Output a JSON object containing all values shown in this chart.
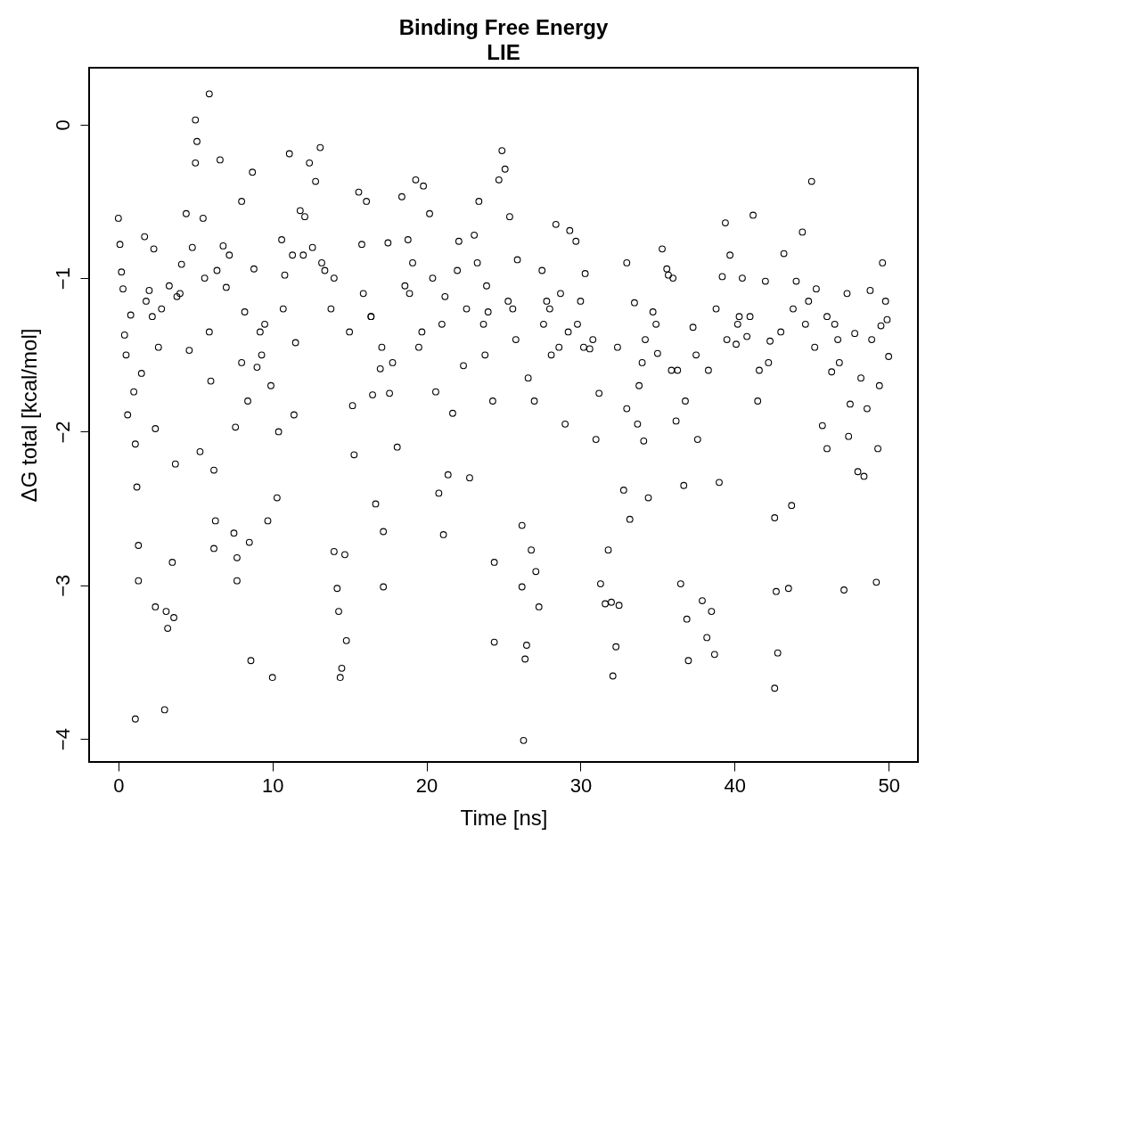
{
  "chart_data": {
    "type": "scatter",
    "title": "Binding Free Energy",
    "subtitle": "LIE",
    "xlabel": "Time [ns]",
    "ylabel": "ΔG total [kcal/mol]",
    "xlim": [
      -1.9,
      51.9
    ],
    "ylim": [
      -4.15,
      0.37
    ],
    "xticks": [
      0,
      10,
      20,
      30,
      40,
      50
    ],
    "yticks": [
      0,
      -1,
      -2,
      -3,
      -4
    ],
    "grid": false,
    "marker": "circle",
    "series": [
      {
        "color": "#000000",
        "x": [
          0.0,
          0.1,
          0.2,
          0.3,
          0.4,
          0.5,
          0.6,
          0.8,
          1.0,
          1.1,
          1.2,
          1.1,
          1.3,
          1.3,
          1.5,
          1.7,
          2.0,
          2.3,
          2.4,
          2.4,
          3.0,
          3.1,
          3.2,
          3.5,
          3.6,
          3.7,
          3.8,
          4.1,
          4.4,
          4.6,
          5.0,
          5.1,
          5.0,
          5.3,
          5.5,
          5.9,
          5.9,
          6.0,
          6.2,
          6.3,
          6.2,
          6.6,
          6.8,
          7.0,
          7.6,
          7.5,
          7.7,
          7.7,
          8.0,
          8.2,
          8.5,
          8.6,
          8.7,
          8.8,
          9.0,
          9.5,
          9.7,
          10.0,
          10.3,
          10.4,
          10.6,
          10.8,
          11.1,
          11.4,
          11.5,
          11.8,
          12.1,
          12.4,
          12.8,
          13.1,
          13.4,
          13.8,
          14.0,
          14.2,
          14.3,
          14.4,
          14.5,
          14.7,
          14.8,
          15.0,
          15.2,
          15.3,
          15.6,
          15.8,
          16.1,
          16.5,
          16.7,
          17.0,
          17.2,
          17.2,
          17.5,
          17.8,
          18.1,
          18.4,
          18.8,
          19.3,
          19.5,
          19.8,
          20.2,
          20.6,
          20.8,
          21.1,
          21.4,
          21.7,
          22.1,
          22.4,
          22.8,
          23.1,
          23.4,
          23.7,
          24.0,
          24.3,
          24.4,
          24.4,
          24.7,
          24.9,
          25.1,
          25.4,
          25.6,
          25.9,
          26.2,
          26.2,
          26.3,
          26.4,
          26.5,
          26.8,
          27.1,
          27.3,
          27.5,
          27.8,
          28.1,
          28.4,
          29.0,
          29.3,
          29.7,
          30.0,
          30.3,
          30.6,
          31.0,
          31.3,
          31.6,
          31.8,
          32.0,
          32.1,
          32.3,
          32.5,
          32.8,
          33.0,
          33.2,
          33.5,
          33.8,
          34.1,
          34.4,
          34.7,
          35.0,
          35.3,
          35.6,
          35.9,
          36.2,
          36.5,
          36.7,
          36.9,
          37.0,
          37.3,
          37.6,
          37.9,
          38.2,
          38.5,
          38.7,
          39.0,
          39.2,
          39.4,
          39.7,
          40.1,
          40.5,
          40.8,
          41.2,
          41.6,
          42.0,
          42.3,
          42.6,
          42.6,
          42.8,
          42.7,
          43.2,
          43.5,
          43.7,
          44.0,
          44.4,
          45.0,
          45.3,
          45.7,
          46.0,
          46.3,
          46.7,
          47.1,
          47.4,
          47.8,
          48.0,
          48.4,
          48.8,
          49.2,
          49.3,
          49.6,
          49.8,
          50.0,
          49.9,
          49.5,
          48.6,
          47.5,
          2.8,
          9.2,
          12.0,
          16.4,
          18.9,
          21.0,
          23.9,
          28.7,
          30.8,
          34.0,
          36.0,
          40.3,
          44.8,
          46.5,
          1.8,
          2.2,
          2.6,
          3.3,
          4.0,
          4.8,
          5.6,
          6.4,
          7.2,
          8.0,
          8.4,
          9.3,
          9.9,
          10.7,
          11.3,
          12.6,
          13.2,
          14.0,
          15.9,
          16.4,
          17.1,
          17.6,
          18.6,
          19.1,
          19.7,
          20.4,
          21.2,
          22.0,
          22.6,
          23.3,
          23.8,
          25.3,
          25.8,
          26.6,
          27.0,
          27.6,
          28.0,
          28.6,
          29.2,
          29.8,
          30.2,
          31.2,
          32.4,
          33.0,
          33.7,
          34.2,
          34.9,
          35.7,
          36.3,
          36.8,
          37.5,
          38.3,
          38.8,
          39.5,
          40.2,
          41.0,
          41.5,
          42.2,
          43.0,
          43.8,
          44.6,
          45.2,
          46.0,
          46.8,
          47.3,
          48.2,
          48.9,
          49.4
        ],
        "values": [
          -0.61,
          -0.78,
          -0.96,
          -1.07,
          -1.37,
          -1.5,
          -1.89,
          -1.24,
          -1.74,
          -2.08,
          -2.36,
          -3.87,
          -2.97,
          -2.74,
          -1.62,
          -0.73,
          -1.08,
          -0.81,
          -1.98,
          -3.14,
          -3.81,
          -3.17,
          -3.28,
          -2.85,
          -3.21,
          -2.21,
          -1.12,
          -0.91,
          -0.58,
          -1.47,
          0.03,
          -0.11,
          -0.25,
          -2.13,
          -0.61,
          0.2,
          -1.35,
          -1.67,
          -2.25,
          -2.58,
          -2.76,
          -0.23,
          -0.79,
          -1.06,
          -1.97,
          -2.66,
          -2.82,
          -2.97,
          -0.5,
          -1.22,
          -2.72,
          -3.49,
          -0.31,
          -0.94,
          -1.58,
          -1.3,
          -2.58,
          -3.6,
          -2.43,
          -2.0,
          -0.75,
          -0.98,
          -0.19,
          -1.89,
          -1.42,
          -0.56,
          -0.6,
          -0.25,
          -0.37,
          -0.15,
          -0.95,
          -1.2,
          -2.78,
          -3.02,
          -3.17,
          -3.6,
          -3.54,
          -2.8,
          -3.36,
          -1.35,
          -1.83,
          -2.15,
          -0.44,
          -0.78,
          -0.5,
          -1.76,
          -2.47,
          -1.59,
          -2.65,
          -3.01,
          -0.77,
          -1.55,
          -2.1,
          -0.47,
          -0.75,
          -0.36,
          -1.45,
          -0.4,
          -0.58,
          -1.74,
          -2.4,
          -2.67,
          -2.28,
          -1.88,
          -0.76,
          -1.57,
          -2.3,
          -0.72,
          -0.5,
          -1.3,
          -1.22,
          -1.8,
          -3.37,
          -2.85,
          -0.36,
          -0.17,
          -0.29,
          -0.6,
          -1.2,
          -0.88,
          -2.61,
          -3.01,
          -4.01,
          -3.48,
          -3.39,
          -2.77,
          -2.91,
          -3.14,
          -0.95,
          -1.15,
          -1.5,
          -0.65,
          -1.95,
          -0.69,
          -0.76,
          -1.15,
          -0.97,
          -1.46,
          -2.05,
          -2.99,
          -3.12,
          -2.77,
          -3.11,
          -3.59,
          -3.4,
          -3.13,
          -2.38,
          -0.9,
          -2.57,
          -1.16,
          -1.7,
          -2.06,
          -2.43,
          -1.22,
          -1.49,
          -0.81,
          -0.94,
          -1.6,
          -1.93,
          -2.99,
          -2.35,
          -3.22,
          -3.49,
          -1.32,
          -2.05,
          -3.1,
          -3.34,
          -3.17,
          -3.45,
          -2.33,
          -0.99,
          -0.64,
          -0.85,
          -1.43,
          -1.0,
          -1.38,
          -0.59,
          -1.6,
          -1.02,
          -1.41,
          -2.56,
          -3.67,
          -3.44,
          -3.04,
          -0.84,
          -3.02,
          -2.48,
          -1.02,
          -0.7,
          -0.37,
          -1.07,
          -1.96,
          -2.11,
          -1.61,
          -1.4,
          -3.03,
          -2.03,
          -1.36,
          -2.26,
          -2.29,
          -1.08,
          -2.98,
          -2.11,
          -0.9,
          -1.15,
          -1.51,
          -1.27,
          -1.31,
          -1.85,
          -1.82,
          -1.2,
          -1.35,
          -0.85,
          -1.25,
          -1.1,
          -1.3,
          -1.05,
          -1.1,
          -1.4,
          -1.55,
          -1.0,
          -1.25,
          -1.15,
          -1.3,
          -1.15,
          -1.25,
          -1.45,
          -1.05,
          -1.1,
          -0.8,
          -1.0,
          -0.95,
          -0.85,
          -1.55,
          -1.8,
          -1.5,
          -1.7,
          -1.2,
          -0.85,
          -0.8,
          -0.9,
          -1.0,
          -1.1,
          -1.25,
          -1.45,
          -1.75,
          -1.05,
          -0.9,
          -1.35,
          -1.0,
          -1.12,
          -0.95,
          -1.2,
          -0.9,
          -1.5,
          -1.15,
          -1.4,
          -1.65,
          -1.8,
          -1.3,
          -1.2,
          -1.45,
          -1.35,
          -1.3,
          -1.45,
          -1.75,
          -1.45,
          -1.85,
          -1.95,
          -1.4,
          -1.3,
          -0.98,
          -1.6,
          -1.8,
          -1.5,
          -1.6,
          -1.2,
          -1.4,
          -1.3,
          -1.25,
          -1.8,
          -1.55,
          -1.35,
          -1.2,
          -1.3,
          -1.45,
          -1.25,
          -1.55,
          -1.1,
          -1.65,
          -1.4,
          -1.7
        ]
      }
    ]
  }
}
